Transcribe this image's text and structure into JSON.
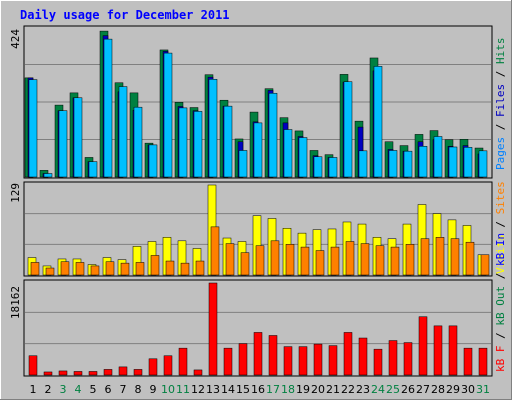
{
  "chart_data": [
    {
      "type": "bar",
      "title": "Daily usage for December 2011",
      "panel": "top",
      "ymax_label": "424",
      "ylim": [
        0,
        424
      ],
      "side_legend": [
        {
          "text": "Pages",
          "color": "#0080ff"
        },
        {
          "text": " / ",
          "color": "#000000"
        },
        {
          "text": "Files",
          "color": "#0000c0"
        },
        {
          "text": " / ",
          "color": "#000000"
        },
        {
          "text": "Hits",
          "color": "#008040"
        }
      ],
      "categories": [
        "1",
        "2",
        "3",
        "4",
        "5",
        "6",
        "7",
        "8",
        "9",
        "10",
        "11",
        "12",
        "13",
        "14",
        "15",
        "16",
        "17",
        "18",
        "19",
        "20",
        "21",
        "22",
        "23",
        "24",
        "25",
        "26",
        "27",
        "28",
        "29",
        "30",
        "31"
      ],
      "weekend_days": [
        "3",
        "4",
        "10",
        "11",
        "17",
        "18",
        "24",
        "25",
        "31"
      ],
      "series": [
        {
          "name": "Hits",
          "color": "#008040",
          "values": [
            284,
            19,
            206,
            241,
            56,
            418,
            270,
            241,
            97,
            364,
            214,
            199,
            293,
            220,
            109,
            186,
            253,
            170,
            132,
            76,
            64,
            294,
            160,
            341,
            101,
            90,
            122,
            133,
            107,
            108,
            83
          ]
        },
        {
          "name": "Files",
          "color": "#0000c0",
          "values": [
            284,
            10,
            190,
            227,
            44,
            405,
            244,
            191,
            92,
            360,
            202,
            190,
            286,
            203,
            101,
            158,
            248,
            155,
            116,
            61,
            56,
            272,
            143,
            304,
            79,
            74,
            101,
            107,
            88,
            90,
            66
          ]
        },
        {
          "name": "Pages",
          "color": "#00c0ff",
          "values": [
            279,
            10,
            190,
            227,
            44,
            395,
            259,
            200,
            92,
            355,
            198,
            188,
            280,
            203,
            76,
            155,
            240,
            136,
            113,
            58,
            56,
            273,
            75,
            317,
            76,
            74,
            88,
            116,
            86,
            85,
            75
          ]
        }
      ]
    },
    {
      "type": "bar",
      "panel": "middle",
      "ymax_label": "129",
      "ylim": [
        0,
        129
      ],
      "side_legend": [
        {
          "text": "Visits",
          "color": "#ffff00"
        },
        {
          "text": " / ",
          "color": "#000000"
        },
        {
          "text": "Sites",
          "color": "#ff8000"
        }
      ],
      "categories": [
        "1",
        "2",
        "3",
        "4",
        "5",
        "6",
        "7",
        "8",
        "9",
        "10",
        "11",
        "12",
        "13",
        "14",
        "15",
        "16",
        "17",
        "18",
        "19",
        "20",
        "21",
        "22",
        "23",
        "24",
        "25",
        "26",
        "27",
        "28",
        "29",
        "30",
        "31"
      ],
      "series": [
        {
          "name": "Visits",
          "color": "#ffff00",
          "values": [
            25,
            13,
            23,
            23,
            15,
            25,
            22,
            41,
            48,
            54,
            49,
            38,
            129,
            53,
            48,
            85,
            81,
            67,
            60,
            65,
            66,
            76,
            73,
            54,
            52,
            73,
            101,
            88,
            79,
            71,
            29
          ]
        },
        {
          "name": "Sites",
          "color": "#ff8000",
          "values": [
            18,
            10,
            19,
            18,
            13,
            19,
            17,
            18,
            28,
            20,
            17,
            20,
            69,
            45,
            32,
            42,
            49,
            44,
            40,
            35,
            40,
            48,
            45,
            42,
            40,
            44,
            52,
            54,
            52,
            47,
            29
          ]
        }
      ]
    },
    {
      "type": "bar",
      "panel": "bottom",
      "ymax_label": "18162",
      "ylim": [
        0,
        18162
      ],
      "side_legend": [
        {
          "text": "kB F",
          "color": "#ff0000"
        },
        {
          "text": " / ",
          "color": "#000000"
        },
        {
          "text": "kB Out",
          "color": "#008040"
        },
        {
          "text": " / ",
          "color": "#000000"
        },
        {
          "text": "kB In",
          "color": "#0000ff"
        }
      ],
      "categories": [
        "1",
        "2",
        "3",
        "4",
        "5",
        "6",
        "7",
        "8",
        "9",
        "10",
        "11",
        "12",
        "13",
        "14",
        "15",
        "16",
        "17",
        "18",
        "19",
        "20",
        "21",
        "22",
        "23",
        "24",
        "25",
        "26",
        "27",
        "28",
        "29",
        "30",
        "31"
      ],
      "series": [
        {
          "name": "kB F",
          "color": "#ff0000",
          "values": [
            3800,
            600,
            800,
            700,
            700,
            1100,
            1600,
            1100,
            3200,
            3800,
            5300,
            1000,
            18162,
            5300,
            6200,
            8400,
            7800,
            5600,
            5600,
            6100,
            5800,
            8400,
            7300,
            5100,
            6800,
            6400,
            11500,
            9700,
            9700,
            5300,
            5300
          ]
        }
      ]
    }
  ]
}
